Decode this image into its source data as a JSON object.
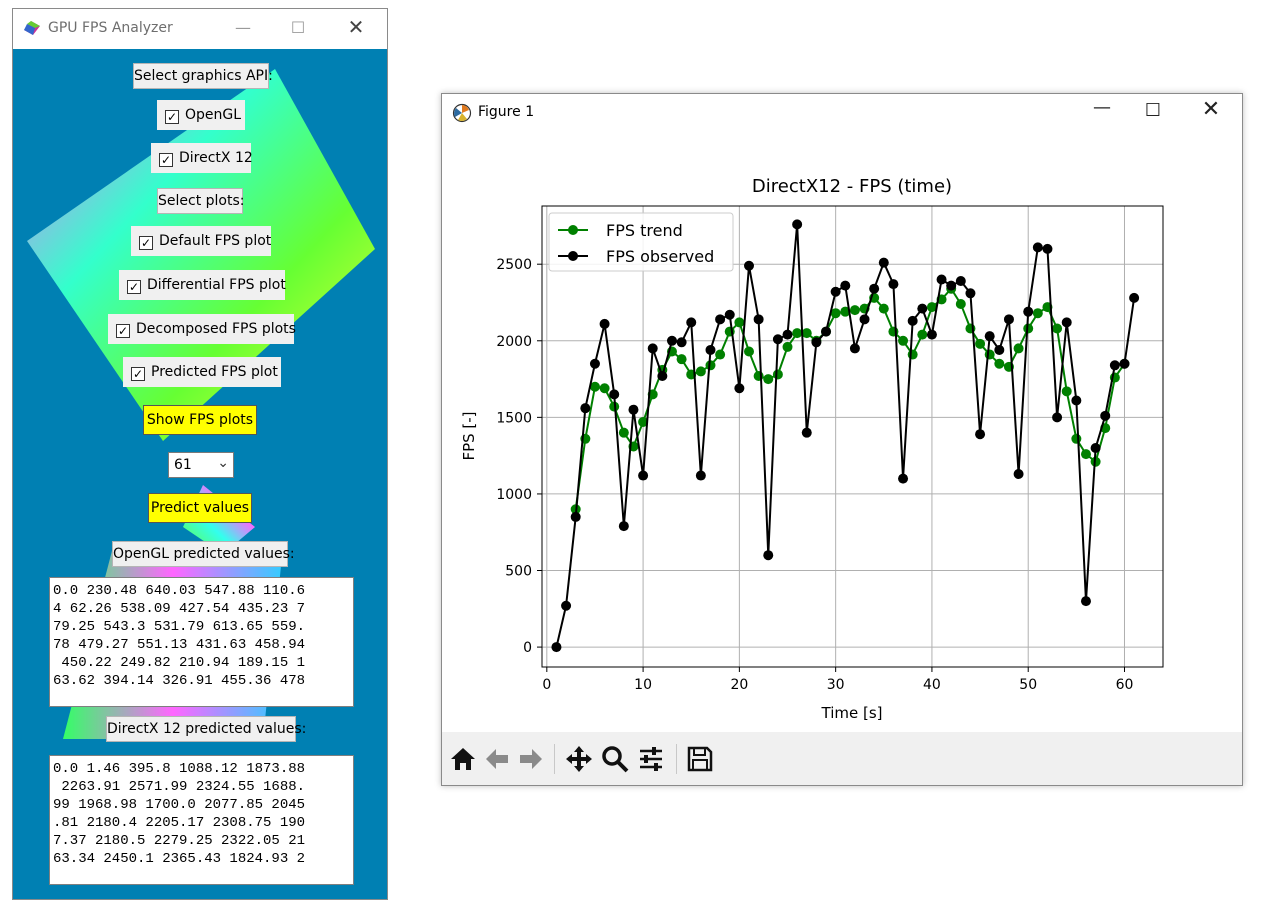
{
  "left_window": {
    "title": "GPU FPS Analyzer",
    "select_api_label": "Select graphics API:",
    "api_options": [
      {
        "label": "OpenGL",
        "checked": true
      },
      {
        "label": "DirectX 12",
        "checked": true
      }
    ],
    "select_plots_label": "Select plots:",
    "plot_options": [
      {
        "label": "Default FPS plot",
        "checked": true
      },
      {
        "label": "Differential FPS plot",
        "checked": true
      },
      {
        "label": "Decomposed FPS plots",
        "checked": true
      },
      {
        "label": "Predicted FPS plot",
        "checked": true
      }
    ],
    "show_button": "Show FPS plots",
    "combo_value": "61",
    "predict_button": "Predict values",
    "opengl_label": "OpenGL predicted values:",
    "opengl_text": "0.0 230.48 640.03 547.88 110.6\n4 62.26 538.09 427.54 435.23 7\n79.25 543.3 531.79 613.65 559.\n78 479.27 551.13 431.63 458.94\n 450.22 249.82 210.94 189.15 1\n63.62 394.14 326.91 455.36 478",
    "directx_label": "DirectX 12 predicted values:",
    "directx_text": "0.0 1.46 395.8 1088.12 1873.88\n 2263.91 2571.99 2324.55 1688.\n99 1968.98 1700.0 2077.85 2045\n.81 2180.4 2205.17 2308.75 190\n7.37 2180.5 2279.25 2322.05 21\n63.34 2450.1 2365.43 1824.93 2"
  },
  "right_window": {
    "title": "Figure 1",
    "toolbar_icons": [
      "home-icon",
      "back-arrow-icon",
      "forward-arrow-icon",
      "pan-icon",
      "zoom-icon",
      "configure-icon",
      "save-icon"
    ]
  },
  "chart_data": {
    "type": "line",
    "title": "DirectX12 - FPS (time)",
    "xlabel": "Time [s]",
    "ylabel": "FPS [-]",
    "xlim": [
      -0.5,
      64
    ],
    "ylim": [
      -130,
      2880
    ],
    "xticks": [
      0,
      10,
      20,
      30,
      40,
      50,
      60
    ],
    "yticks": [
      0,
      500,
      1000,
      1500,
      2000,
      2500
    ],
    "grid": true,
    "legend": "top-left",
    "series": [
      {
        "name": "FPS trend",
        "color": "#008000",
        "x": [
          3,
          4,
          5,
          6,
          7,
          8,
          9,
          10,
          11,
          12,
          13,
          14,
          15,
          16,
          17,
          18,
          19,
          20,
          21,
          22,
          23,
          24,
          25,
          26,
          27,
          28,
          29,
          30,
          31,
          32,
          33,
          34,
          35,
          36,
          37,
          38,
          39,
          40,
          41,
          42,
          43,
          44,
          45,
          46,
          47,
          48,
          49,
          50,
          51,
          52,
          53,
          54,
          55,
          56,
          57,
          58,
          59,
          60
        ],
        "y": [
          900,
          1360,
          1700,
          1690,
          1570,
          1400,
          1310,
          1470,
          1650,
          1810,
          1930,
          1880,
          1780,
          1800,
          1840,
          1910,
          2060,
          2120,
          1930,
          1770,
          1750,
          1780,
          1960,
          2050,
          2050,
          2000,
          2060,
          2180,
          2190,
          2200,
          2210,
          2280,
          2210,
          2060,
          2000,
          1910,
          2040,
          2220,
          2270,
          2340,
          2240,
          2080,
          1980,
          1910,
          1850,
          1830,
          1950,
          2080,
          2180,
          2220,
          2080,
          1670,
          1360,
          1260,
          1210,
          1430,
          1760,
          1850
        ],
        "marker": "o"
      },
      {
        "name": "FPS observed",
        "color": "#000000",
        "x": [
          1,
          2,
          3,
          4,
          5,
          6,
          7,
          8,
          9,
          10,
          11,
          12,
          13,
          14,
          15,
          16,
          17,
          18,
          19,
          20,
          21,
          22,
          23,
          24,
          25,
          26,
          27,
          28,
          29,
          30,
          31,
          32,
          33,
          34,
          35,
          36,
          37,
          38,
          39,
          40,
          41,
          42,
          43,
          44,
          45,
          46,
          47,
          48,
          49,
          50,
          51,
          52,
          53,
          54,
          55,
          56,
          57,
          58,
          59,
          60,
          61
        ],
        "y": [
          0,
          270,
          850,
          1560,
          1850,
          2110,
          1650,
          790,
          1550,
          1120,
          1950,
          1770,
          2000,
          1990,
          2120,
          1120,
          1940,
          2140,
          2170,
          1690,
          2490,
          2140,
          600,
          2010,
          2040,
          2760,
          1400,
          1990,
          2060,
          2320,
          2360,
          1950,
          2140,
          2340,
          2510,
          2370,
          1100,
          2130,
          2210,
          2040,
          2400,
          2360,
          2390,
          2310,
          1390,
          2030,
          1940,
          2140,
          1130,
          2190,
          2610,
          2600,
          1500,
          2120,
          1610,
          300,
          1300,
          1510,
          1840,
          1850,
          2280
        ],
        "marker": "o"
      }
    ]
  }
}
